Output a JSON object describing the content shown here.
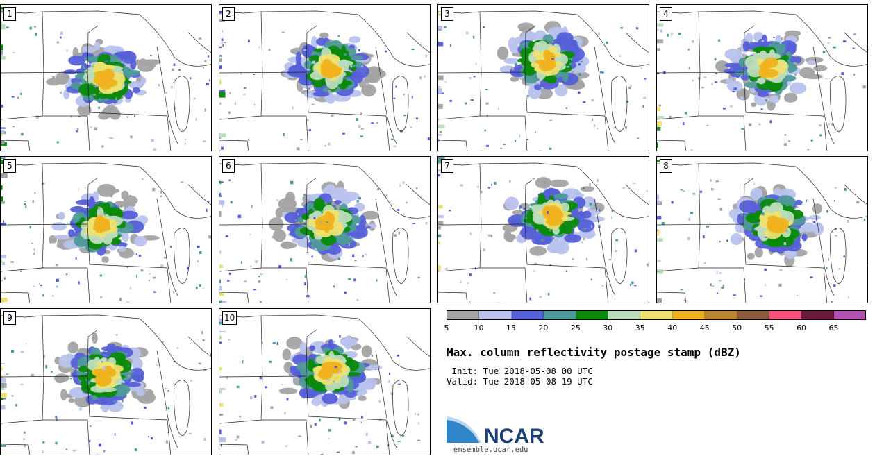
{
  "panels": [
    {
      "label": "1"
    },
    {
      "label": "2"
    },
    {
      "label": "3"
    },
    {
      "label": "4"
    },
    {
      "label": "5"
    },
    {
      "label": "6"
    },
    {
      "label": "7"
    },
    {
      "label": "8"
    },
    {
      "label": "9"
    },
    {
      "label": "10"
    }
  ],
  "legend": {
    "colors": [
      "#a3a3a3",
      "#b8c2ec",
      "#5560d8",
      "#4e9a9a",
      "#0b8a0b",
      "#bcdcbc",
      "#ede070",
      "#efb320",
      "#bb8430",
      "#8a5a3e",
      "#f5507c",
      "#6a1a3a",
      "#b050b0"
    ],
    "ticks": [
      "5",
      "10",
      "15",
      "20",
      "25",
      "30",
      "35",
      "40",
      "45",
      "50",
      "55",
      "60",
      "65"
    ],
    "range": [
      5,
      70
    ]
  },
  "title": "Max. column reflectivity postage stamp (dBZ)",
  "init": " Init: Tue 2018-05-08 00 UTC",
  "valid": "Valid: Tue 2018-05-08 19 UTC",
  "logo": {
    "text": "NCAR",
    "color": "#1a3f73",
    "accent": "#2e86c8"
  },
  "site": "ensemble.ucar.edu"
}
